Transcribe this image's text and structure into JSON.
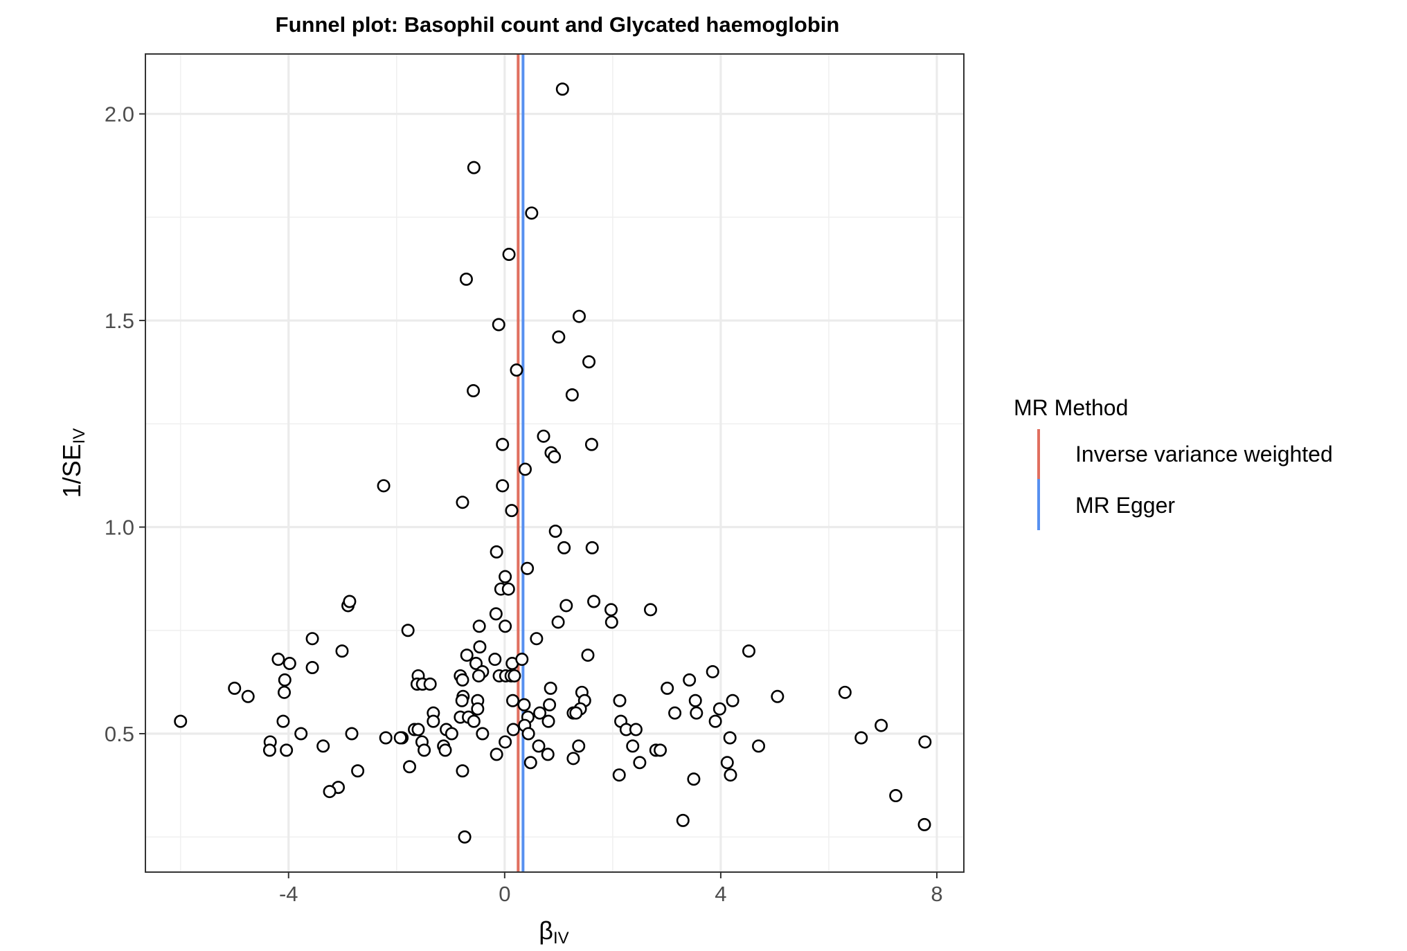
{
  "chart_data": {
    "type": "scatter",
    "title": "Funnel plot: Basophil count and Glycated haemoglobin",
    "xlabel": "β",
    "xlabel_sub": "IV",
    "ylabel": "1/SE",
    "ylabel_sub": "IV",
    "xlim": [
      -6.65,
      8.5
    ],
    "ylim": [
      0.165,
      2.145
    ],
    "x_ticks": [
      -4,
      0,
      4,
      8
    ],
    "x_tick_labels": [
      "-4",
      "0",
      "4",
      "8"
    ],
    "y_ticks": [
      0.5,
      1.0,
      1.5,
      2.0
    ],
    "y_tick_labels": [
      "0.5",
      "1.0",
      "1.5",
      "2.0"
    ],
    "x_minor": [
      -6,
      -2,
      2,
      6
    ],
    "y_minor": [
      0.25,
      0.75,
      1.25,
      1.75
    ],
    "grid": true,
    "legend_position": "right",
    "legend": {
      "title": "MR Method",
      "entries": [
        {
          "label": "Inverse variance weighted",
          "color": "#e06f5f"
        },
        {
          "label": "MR Egger",
          "color": "#5790f0"
        }
      ]
    },
    "vlines": [
      {
        "method": "Inverse variance weighted",
        "x": 0.25,
        "color": "#e06f5f"
      },
      {
        "method": "MR Egger",
        "x": 0.34,
        "color": "#5790f0"
      }
    ],
    "points": [
      {
        "x": 1.07,
        "y": 2.06
      },
      {
        "x": -0.57,
        "y": 1.87
      },
      {
        "x": 0.5,
        "y": 1.76
      },
      {
        "x": 0.08,
        "y": 1.66
      },
      {
        "x": -0.71,
        "y": 1.6
      },
      {
        "x": 1.38,
        "y": 1.51
      },
      {
        "x": -0.11,
        "y": 1.49
      },
      {
        "x": 1.0,
        "y": 1.46
      },
      {
        "x": 1.56,
        "y": 1.4
      },
      {
        "x": 0.22,
        "y": 1.38
      },
      {
        "x": -0.58,
        "y": 1.33
      },
      {
        "x": 1.25,
        "y": 1.32
      },
      {
        "x": 0.72,
        "y": 1.22
      },
      {
        "x": -0.04,
        "y": 1.2
      },
      {
        "x": 1.61,
        "y": 1.2
      },
      {
        "x": 0.86,
        "y": 1.18
      },
      {
        "x": 0.92,
        "y": 1.17
      },
      {
        "x": 0.38,
        "y": 1.14
      },
      {
        "x": -2.24,
        "y": 1.1
      },
      {
        "x": -0.04,
        "y": 1.1
      },
      {
        "x": -0.78,
        "y": 1.06
      },
      {
        "x": 0.13,
        "y": 1.04
      },
      {
        "x": 0.94,
        "y": 0.99
      },
      {
        "x": -0.15,
        "y": 0.94
      },
      {
        "x": 1.1,
        "y": 0.95
      },
      {
        "x": 1.62,
        "y": 0.95
      },
      {
        "x": 0.42,
        "y": 0.9
      },
      {
        "x": 0.01,
        "y": 0.88
      },
      {
        "x": -0.07,
        "y": 0.85
      },
      {
        "x": 0.07,
        "y": 0.85
      },
      {
        "x": 1.14,
        "y": 0.81
      },
      {
        "x": 1.65,
        "y": 0.82
      },
      {
        "x": -2.9,
        "y": 0.81
      },
      {
        "x": -2.87,
        "y": 0.82
      },
      {
        "x": 1.97,
        "y": 0.8
      },
      {
        "x": 2.7,
        "y": 0.8
      },
      {
        "x": -0.16,
        "y": 0.79
      },
      {
        "x": 0.99,
        "y": 0.77
      },
      {
        "x": 1.98,
        "y": 0.77
      },
      {
        "x": 0.01,
        "y": 0.76
      },
      {
        "x": -1.79,
        "y": 0.75
      },
      {
        "x": -0.47,
        "y": 0.76
      },
      {
        "x": -3.56,
        "y": 0.73
      },
      {
        "x": 0.59,
        "y": 0.73
      },
      {
        "x": -0.46,
        "y": 0.71
      },
      {
        "x": -3.01,
        "y": 0.7
      },
      {
        "x": 4.52,
        "y": 0.7
      },
      {
        "x": -0.7,
        "y": 0.69
      },
      {
        "x": 1.54,
        "y": 0.69
      },
      {
        "x": -0.18,
        "y": 0.68
      },
      {
        "x": -4.19,
        "y": 0.68
      },
      {
        "x": -0.53,
        "y": 0.67
      },
      {
        "x": 0.14,
        "y": 0.67
      },
      {
        "x": 0.32,
        "y": 0.68
      },
      {
        "x": -3.98,
        "y": 0.67
      },
      {
        "x": -3.56,
        "y": 0.66
      },
      {
        "x": -0.41,
        "y": 0.65
      },
      {
        "x": 3.85,
        "y": 0.65
      },
      {
        "x": -0.82,
        "y": 0.64
      },
      {
        "x": -0.48,
        "y": 0.64
      },
      {
        "x": -0.1,
        "y": 0.64
      },
      {
        "x": 0.02,
        "y": 0.64
      },
      {
        "x": 0.12,
        "y": 0.64
      },
      {
        "x": 0.18,
        "y": 0.64
      },
      {
        "x": -1.6,
        "y": 0.64
      },
      {
        "x": -4.07,
        "y": 0.63
      },
      {
        "x": -0.78,
        "y": 0.63
      },
      {
        "x": 3.42,
        "y": 0.63
      },
      {
        "x": -1.62,
        "y": 0.62
      },
      {
        "x": -1.52,
        "y": 0.62
      },
      {
        "x": -1.38,
        "y": 0.62
      },
      {
        "x": -5.0,
        "y": 0.61
      },
      {
        "x": 0.85,
        "y": 0.61
      },
      {
        "x": 3.01,
        "y": 0.61
      },
      {
        "x": -4.08,
        "y": 0.6
      },
      {
        "x": -4.75,
        "y": 0.59
      },
      {
        "x": 1.43,
        "y": 0.6
      },
      {
        "x": 6.3,
        "y": 0.6
      },
      {
        "x": -0.77,
        "y": 0.59
      },
      {
        "x": 1.48,
        "y": 0.58
      },
      {
        "x": 2.13,
        "y": 0.58
      },
      {
        "x": 3.53,
        "y": 0.58
      },
      {
        "x": 5.05,
        "y": 0.59
      },
      {
        "x": -0.79,
        "y": 0.58
      },
      {
        "x": -0.5,
        "y": 0.58
      },
      {
        "x": 0.15,
        "y": 0.58
      },
      {
        "x": 0.36,
        "y": 0.57
      },
      {
        "x": 0.83,
        "y": 0.57
      },
      {
        "x": 4.22,
        "y": 0.58
      },
      {
        "x": -0.5,
        "y": 0.56
      },
      {
        "x": 1.4,
        "y": 0.56
      },
      {
        "x": -1.32,
        "y": 0.55
      },
      {
        "x": 0.65,
        "y": 0.55
      },
      {
        "x": 1.27,
        "y": 0.55
      },
      {
        "x": 1.32,
        "y": 0.55
      },
      {
        "x": 3.15,
        "y": 0.55
      },
      {
        "x": 3.55,
        "y": 0.55
      },
      {
        "x": 3.98,
        "y": 0.56
      },
      {
        "x": -6.0,
        "y": 0.53
      },
      {
        "x": -4.1,
        "y": 0.53
      },
      {
        "x": -1.32,
        "y": 0.53
      },
      {
        "x": -0.82,
        "y": 0.54
      },
      {
        "x": -0.67,
        "y": 0.54
      },
      {
        "x": -0.57,
        "y": 0.53
      },
      {
        "x": 0.43,
        "y": 0.54
      },
      {
        "x": 0.81,
        "y": 0.53
      },
      {
        "x": 2.15,
        "y": 0.53
      },
      {
        "x": 3.9,
        "y": 0.53
      },
      {
        "x": -1.08,
        "y": 0.51
      },
      {
        "x": -1.67,
        "y": 0.51
      },
      {
        "x": -1.6,
        "y": 0.51
      },
      {
        "x": 0.37,
        "y": 0.52
      },
      {
        "x": 0.16,
        "y": 0.51
      },
      {
        "x": 2.25,
        "y": 0.51
      },
      {
        "x": 2.43,
        "y": 0.51
      },
      {
        "x": 6.97,
        "y": 0.52
      },
      {
        "x": -3.77,
        "y": 0.5
      },
      {
        "x": -2.83,
        "y": 0.5
      },
      {
        "x": -0.98,
        "y": 0.5
      },
      {
        "x": -0.41,
        "y": 0.5
      },
      {
        "x": -1.9,
        "y": 0.49
      },
      {
        "x": 0.44,
        "y": 0.5
      },
      {
        "x": 4.17,
        "y": 0.49
      },
      {
        "x": 6.6,
        "y": 0.49
      },
      {
        "x": -1.93,
        "y": 0.49
      },
      {
        "x": -2.2,
        "y": 0.49
      },
      {
        "x": -4.34,
        "y": 0.48
      },
      {
        "x": -3.36,
        "y": 0.47
      },
      {
        "x": -1.53,
        "y": 0.48
      },
      {
        "x": 0.01,
        "y": 0.48
      },
      {
        "x": 7.78,
        "y": 0.48
      },
      {
        "x": -1.13,
        "y": 0.47
      },
      {
        "x": 0.63,
        "y": 0.47
      },
      {
        "x": 1.37,
        "y": 0.47
      },
      {
        "x": 2.37,
        "y": 0.47
      },
      {
        "x": 4.7,
        "y": 0.47
      },
      {
        "x": -4.35,
        "y": 0.46
      },
      {
        "x": -4.04,
        "y": 0.46
      },
      {
        "x": -1.49,
        "y": 0.46
      },
      {
        "x": -1.1,
        "y": 0.46
      },
      {
        "x": -0.15,
        "y": 0.45
      },
      {
        "x": 0.8,
        "y": 0.45
      },
      {
        "x": 2.8,
        "y": 0.46
      },
      {
        "x": 2.88,
        "y": 0.46
      },
      {
        "x": 1.27,
        "y": 0.44
      },
      {
        "x": 2.5,
        "y": 0.43
      },
      {
        "x": 4.12,
        "y": 0.43
      },
      {
        "x": 0.48,
        "y": 0.43
      },
      {
        "x": -1.76,
        "y": 0.42
      },
      {
        "x": -2.72,
        "y": 0.41
      },
      {
        "x": -0.78,
        "y": 0.41
      },
      {
        "x": 2.12,
        "y": 0.4
      },
      {
        "x": 4.18,
        "y": 0.4
      },
      {
        "x": 3.5,
        "y": 0.39
      },
      {
        "x": -3.08,
        "y": 0.37
      },
      {
        "x": -3.24,
        "y": 0.36
      },
      {
        "x": 7.24,
        "y": 0.35
      },
      {
        "x": 3.3,
        "y": 0.29
      },
      {
        "x": 7.77,
        "y": 0.28
      },
      {
        "x": -0.74,
        "y": 0.25
      }
    ]
  }
}
